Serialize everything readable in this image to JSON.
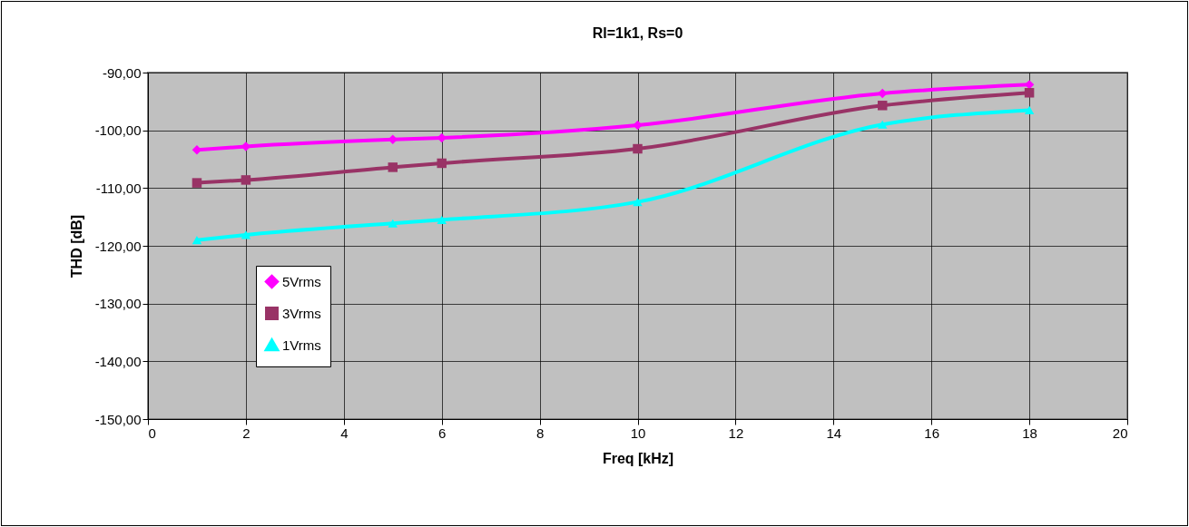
{
  "chart_data": {
    "type": "line",
    "title": "Rl=1k1, Rs=0",
    "xlabel": "Freq [kHz]",
    "ylabel": "THD [dB]",
    "x": [
      1,
      2,
      5,
      6,
      10,
      15,
      18
    ],
    "xlim": [
      0,
      20
    ],
    "xticks": [
      0,
      2,
      4,
      6,
      8,
      10,
      12,
      14,
      16,
      18,
      20
    ],
    "ylim": [
      -150,
      -90
    ],
    "yticks": [
      {
        "value": -150,
        "label": "-150,00"
      },
      {
        "value": -140,
        "label": "-140,00"
      },
      {
        "value": -130,
        "label": "-130,00"
      },
      {
        "value": -120,
        "label": "-120,00"
      },
      {
        "value": -110,
        "label": "-110,00"
      },
      {
        "value": -100,
        "label": "-100,00"
      },
      {
        "value": -90,
        "label": "-90,00"
      }
    ],
    "grid": true,
    "legend": "left",
    "line_style": "solid",
    "series": [
      {
        "name": "5Vrms",
        "color": "#ff00ff",
        "marker": "diamond",
        "values": [
          -103.4,
          -102.8,
          -101.6,
          -101.3,
          -99.1,
          -93.6,
          -92.1
        ]
      },
      {
        "name": "3Vrms",
        "color": "#993366",
        "marker": "square",
        "values": [
          -109.1,
          -108.6,
          -106.4,
          -105.7,
          -103.2,
          -95.7,
          -93.5
        ]
      },
      {
        "name": "1Vrms",
        "color": "#00ffff",
        "marker": "triangle",
        "values": [
          -119.0,
          -118.1,
          -116.1,
          -115.5,
          -112.4,
          -99.0,
          -96.5
        ]
      }
    ]
  }
}
